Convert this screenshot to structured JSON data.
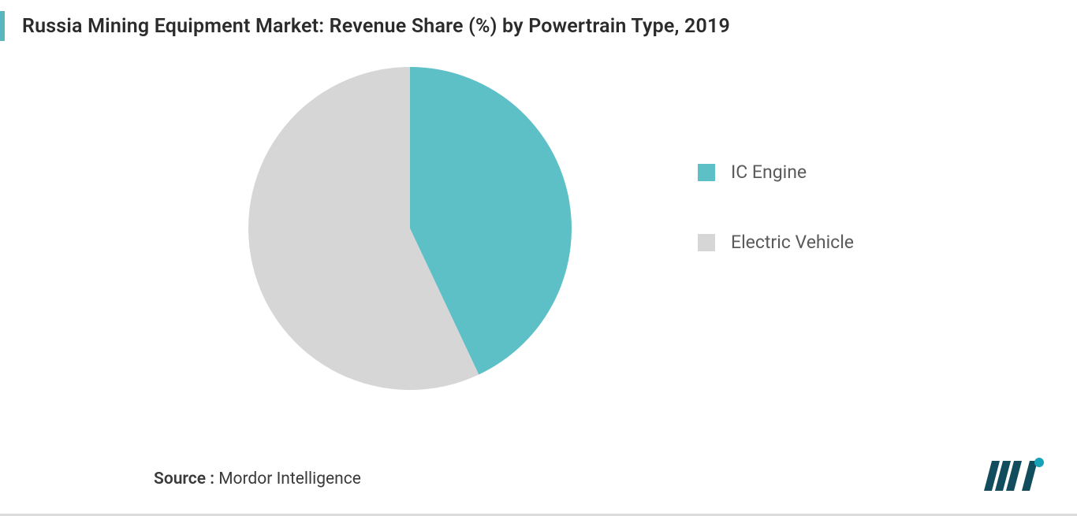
{
  "title": "Russia Mining Equipment Market: Revenue Share (%) by Powertrain Type, 2019",
  "chart": {
    "type": "pie",
    "background_color": "#ffffff",
    "radius": 205,
    "slices": [
      {
        "label": "IC Engine",
        "value": 43,
        "color": "#5ec0c7"
      },
      {
        "label": "Electric Vehicle",
        "value": 57,
        "color": "#d6d6d6"
      }
    ],
    "start_angle_deg": -90
  },
  "legend": {
    "items": [
      {
        "label": "IC Engine",
        "swatch": "#5ec0c7"
      },
      {
        "label": "Electric Vehicle",
        "swatch": "#d6d6d6"
      }
    ],
    "label_fontsize": 23,
    "label_color": "#5a5a5a"
  },
  "title_style": {
    "fontsize": 25,
    "color": "#2b2b2b",
    "accent_color": "#5ab6bf"
  },
  "source": {
    "prefix": "Source : ",
    "text": "Mordor Intelligence",
    "fontsize": 21,
    "color": "#3a3a3a"
  },
  "logo": {
    "bar_color": "#124d5e",
    "dot_color": "#17a2b8",
    "text": "MI"
  }
}
